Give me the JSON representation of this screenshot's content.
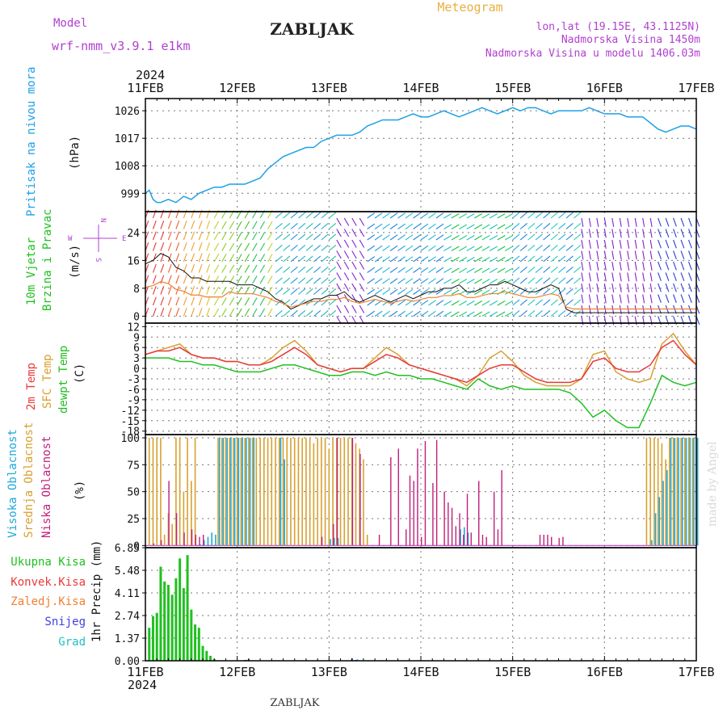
{
  "header": {
    "model_label": "Model",
    "model_name": "wrf-nmm_v3.9.1 e1km",
    "station": "ZABLJAK",
    "meteogram": "Meteogram",
    "lonlat": "lon,lat (19.15E, 43.1125N)",
    "altitude": "Nadmorska Visina 1450m",
    "model_altitude": "Nadmorska Visina u modelu 1406.03m",
    "year": "2024",
    "footer_station": "ZABLJAK",
    "credit": "made by Angel"
  },
  "colors": {
    "pressure": "#1ea0e6",
    "temp2m": "#e83a3a",
    "sfc_temp": "#d8a030",
    "dewpt": "#20c020",
    "high_cloud": "#20a8d8",
    "mid_cloud": "#d8a030",
    "low_cloud": "#c0207a",
    "total_precip": "#20c020",
    "conv_precip": "#e83a3a",
    "frozen_precip": "#f08030",
    "snow": "#4040e0",
    "hail": "#20c0c0",
    "label_purple": "#b040d0",
    "label_orange": "#e8b040"
  },
  "x_axis": {
    "day_labels": [
      "11FEB",
      "12FEB",
      "13FEB",
      "14FEB",
      "15FEB",
      "16FEB",
      "17FEB"
    ],
    "range_hours": [
      0,
      144
    ]
  },
  "panels": {
    "pressure": {
      "title": "Pritisak na nivou mora",
      "unit": "(hPa)",
      "ticks": [
        999,
        1008,
        1017,
        1026
      ],
      "ylim": [
        993,
        1030
      ]
    },
    "wind": {
      "title_line1": "10m Vjetar",
      "title_line2": "Brzina i Pravac",
      "unit": "(m/s)",
      "ticks": [
        0,
        8,
        16,
        24
      ],
      "ylim": [
        -2,
        30
      ],
      "compass": [
        "N",
        "W",
        "E",
        "S"
      ]
    },
    "temperature": {
      "label_2m": "2m Temp",
      "label_sfc": "SFC Temp",
      "label_dewpt": "dewpt Temp",
      "unit": "(C)",
      "ticks": [
        12,
        9,
        6,
        3,
        0,
        -3,
        -6,
        -9,
        -12,
        -15,
        -18
      ],
      "ylim": [
        -19,
        13
      ]
    },
    "clouds": {
      "label_high": "Visoka Oblacnost",
      "label_mid": "Srednja Oblacnost",
      "label_low": "Niska Oblacnost",
      "unit": "(%)",
      "ticks": [
        0,
        25,
        50,
        75,
        100
      ],
      "ylim": [
        0,
        100
      ]
    },
    "precip": {
      "legend": [
        "Ukupna Kisa",
        "Konvek.Kisa",
        "Zaledj.Kisa",
        "Snijeg",
        "Grad"
      ],
      "axis_label": "1hr Precip (mm)",
      "ticks": [
        "0.00",
        "1.37",
        "2.74",
        "4.11",
        "5.48",
        "6.85"
      ],
      "ylim": [
        0,
        6.85
      ]
    }
  },
  "chart_data": {
    "type": "line",
    "x_unit": "hours since 11FEB 00UTC",
    "pressure_hpa": {
      "x": [
        0,
        1,
        2,
        3,
        4,
        6,
        8,
        10,
        12,
        14,
        16,
        18,
        20,
        22,
        24,
        26,
        28,
        30,
        32,
        34,
        36,
        38,
        40,
        42,
        44,
        46,
        48,
        50,
        52,
        54,
        56,
        58,
        60,
        62,
        64,
        66,
        68,
        70,
        72,
        74,
        76,
        78,
        80,
        82,
        84,
        86,
        88,
        90,
        92,
        94,
        96,
        98,
        100,
        102,
        104,
        106,
        108,
        110,
        112,
        114,
        116,
        118,
        120,
        122,
        124,
        126,
        128,
        130,
        132,
        134,
        136,
        138,
        140,
        142,
        144
      ],
      "y": [
        999,
        1000,
        997,
        996,
        996,
        997,
        996,
        998,
        997,
        999,
        1000,
        1001,
        1001,
        1002,
        1002,
        1002,
        1003,
        1004,
        1007,
        1009,
        1011,
        1012,
        1013,
        1014,
        1014,
        1016,
        1017,
        1018,
        1018,
        1018,
        1019,
        1021,
        1022,
        1023,
        1023,
        1023,
        1024,
        1025,
        1024,
        1024,
        1025,
        1026,
        1025,
        1024,
        1025,
        1026,
        1027,
        1026,
        1025,
        1026,
        1027,
        1026,
        1027,
        1027,
        1026,
        1025,
        1026,
        1026,
        1026,
        1026,
        1027,
        1026,
        1025,
        1025,
        1025,
        1024,
        1024,
        1024,
        1022,
        1020,
        1019,
        1020,
        1021,
        1021,
        1020
      ]
    },
    "wind_speed_ms": {
      "x": [
        0,
        2,
        4,
        6,
        8,
        10,
        12,
        14,
        16,
        18,
        20,
        22,
        24,
        26,
        28,
        30,
        32,
        34,
        36,
        38,
        40,
        42,
        44,
        46,
        48,
        50,
        52,
        54,
        56,
        58,
        60,
        62,
        64,
        66,
        68,
        70,
        72,
        74,
        76,
        78,
        80,
        82,
        84,
        86,
        88,
        90,
        92,
        94,
        96,
        98,
        100,
        102,
        104,
        106,
        108,
        110,
        112,
        114,
        116,
        118,
        120,
        122,
        124,
        126,
        128,
        130,
        132,
        134,
        136,
        138,
        140,
        142,
        144
      ],
      "y": [
        15,
        16,
        18,
        17,
        14,
        13,
        11,
        11,
        10,
        10,
        10,
        10,
        9,
        9,
        9,
        8,
        7,
        5,
        4,
        2,
        3,
        4,
        5,
        5,
        6,
        6,
        7,
        5,
        4,
        5,
        6,
        5,
        4,
        5,
        6,
        5,
        6,
        7,
        7,
        8,
        8,
        9,
        7,
        7,
        8,
        9,
        9,
        10,
        9,
        8,
        7,
        7,
        8,
        9,
        8,
        2,
        1,
        1,
        1,
        1,
        1,
        1,
        1,
        1,
        1,
        1,
        1,
        1,
        1,
        1,
        1,
        1,
        1
      ]
    },
    "temperature_c": {
      "x": [
        0,
        3,
        6,
        9,
        12,
        15,
        18,
        21,
        24,
        27,
        30,
        33,
        36,
        39,
        42,
        45,
        48,
        51,
        54,
        57,
        60,
        63,
        66,
        69,
        72,
        75,
        78,
        81,
        84,
        87,
        90,
        93,
        96,
        99,
        102,
        105,
        108,
        111,
        114,
        117,
        120,
        123,
        126,
        129,
        132,
        135,
        138,
        141,
        144
      ],
      "t2m": [
        4,
        5,
        5,
        6,
        4,
        3,
        3,
        2,
        2,
        1,
        1,
        2,
        4,
        6,
        4,
        1,
        0,
        -1,
        0,
        0,
        2,
        4,
        3,
        1,
        0,
        -1,
        -2,
        -3,
        -4,
        -2,
        0,
        1,
        1,
        -1,
        -3,
        -4,
        -4,
        -4,
        -3,
        2,
        3,
        0,
        -1,
        -1,
        1,
        6,
        8,
        4,
        1
      ],
      "sfc": [
        4,
        5,
        6,
        7,
        4,
        3,
        3,
        2,
        2,
        1,
        1,
        3,
        6,
        8,
        5,
        1,
        0,
        -1,
        0,
        0,
        3,
        6,
        4,
        1,
        0,
        -1,
        -2,
        -3,
        -5,
        -2,
        3,
        5,
        2,
        -2,
        -4,
        -5,
        -5,
        -5,
        -3,
        4,
        5,
        -1,
        -3,
        -4,
        -3,
        7,
        10,
        5,
        1
      ],
      "dewpt": [
        3,
        3,
        3,
        2,
        2,
        1,
        1,
        0,
        -1,
        -1,
        -1,
        0,
        1,
        1,
        0,
        -1,
        -2,
        -2,
        -1,
        -1,
        -2,
        -1,
        -2,
        -2,
        -3,
        -3,
        -4,
        -5,
        -6,
        -3,
        -5,
        -6,
        -5,
        -6,
        -6,
        -6,
        -6,
        -7,
        -10,
        -14,
        -12,
        -15,
        -17,
        -17,
        -10,
        -2,
        -4,
        -5,
        -4
      ]
    },
    "clouds_pct": {
      "high": [
        [
          14,
          1
        ],
        [
          15,
          5
        ],
        [
          16,
          8
        ],
        [
          17,
          12
        ],
        [
          18,
          10
        ],
        [
          19,
          100
        ],
        [
          20,
          100
        ],
        [
          21,
          100
        ],
        [
          22,
          100
        ],
        [
          23,
          100
        ],
        [
          24,
          100
        ],
        [
          25,
          100
        ],
        [
          26,
          100
        ],
        [
          27,
          100
        ],
        [
          28,
          100
        ],
        [
          35,
          100
        ],
        [
          36,
          80
        ],
        [
          48,
          6
        ],
        [
          49,
          7
        ],
        [
          50,
          7
        ],
        [
          82,
          15
        ],
        [
          83,
          17
        ],
        [
          84,
          12
        ],
        [
          132,
          5
        ],
        [
          133,
          30
        ],
        [
          134,
          45
        ],
        [
          135,
          60
        ],
        [
          136,
          70
        ],
        [
          137,
          100
        ],
        [
          138,
          100
        ],
        [
          139,
          100
        ],
        [
          140,
          100
        ],
        [
          141,
          100
        ],
        [
          142,
          100
        ],
        [
          143,
          100
        ],
        [
          144,
          100
        ]
      ],
      "mid": [
        [
          1,
          100
        ],
        [
          2,
          100
        ],
        [
          3,
          100
        ],
        [
          4,
          100
        ],
        [
          5,
          10
        ],
        [
          6,
          30
        ],
        [
          7,
          20
        ],
        [
          8,
          100
        ],
        [
          9,
          100
        ],
        [
          10,
          50
        ],
        [
          11,
          100
        ],
        [
          12,
          60
        ],
        [
          13,
          100
        ],
        [
          19,
          100
        ],
        [
          20,
          100
        ],
        [
          21,
          100
        ],
        [
          22,
          100
        ],
        [
          23,
          100
        ],
        [
          24,
          100
        ],
        [
          25,
          100
        ],
        [
          26,
          100
        ],
        [
          27,
          100
        ],
        [
          28,
          100
        ],
        [
          29,
          100
        ],
        [
          30,
          100
        ],
        [
          31,
          100
        ],
        [
          32,
          100
        ],
        [
          33,
          100
        ],
        [
          34,
          100
        ],
        [
          35,
          100
        ],
        [
          36,
          100
        ],
        [
          37,
          100
        ],
        [
          38,
          100
        ],
        [
          39,
          100
        ],
        [
          40,
          100
        ],
        [
          41,
          100
        ],
        [
          42,
          100
        ],
        [
          43,
          100
        ],
        [
          44,
          95
        ],
        [
          45,
          100
        ],
        [
          46,
          100
        ],
        [
          47,
          100
        ],
        [
          48,
          90
        ],
        [
          49,
          100
        ],
        [
          50,
          100
        ],
        [
          51,
          100
        ],
        [
          52,
          100
        ],
        [
          53,
          100
        ],
        [
          54,
          100
        ],
        [
          55,
          95
        ],
        [
          56,
          90
        ],
        [
          57,
          80
        ],
        [
          58,
          10
        ],
        [
          131,
          100
        ],
        [
          132,
          100
        ],
        [
          133,
          100
        ],
        [
          134,
          100
        ],
        [
          135,
          95
        ],
        [
          136,
          80
        ],
        [
          137,
          100
        ],
        [
          138,
          100
        ],
        [
          139,
          100
        ],
        [
          140,
          100
        ],
        [
          141,
          100
        ],
        [
          142,
          100
        ],
        [
          143,
          100
        ],
        [
          144,
          100
        ]
      ],
      "low": [
        [
          2,
          2
        ],
        [
          4,
          5
        ],
        [
          6,
          60
        ],
        [
          8,
          30
        ],
        [
          10,
          12
        ],
        [
          12,
          15
        ],
        [
          13,
          10
        ],
        [
          14,
          8
        ],
        [
          15,
          10
        ],
        [
          46,
          8
        ],
        [
          49,
          20
        ],
        [
          50,
          100
        ],
        [
          54,
          100
        ],
        [
          56,
          85
        ],
        [
          61,
          10
        ],
        [
          64,
          82
        ],
        [
          66,
          90
        ],
        [
          68,
          15
        ],
        [
          69,
          65
        ],
        [
          70,
          60
        ],
        [
          71,
          90
        ],
        [
          72,
          8
        ],
        [
          73,
          97
        ],
        [
          75,
          58
        ],
        [
          76,
          98
        ],
        [
          78,
          50
        ],
        [
          79,
          40
        ],
        [
          80,
          35
        ],
        [
          81,
          18
        ],
        [
          82,
          30
        ],
        [
          83,
          10
        ],
        [
          84,
          48
        ],
        [
          85,
          12
        ],
        [
          87,
          60
        ],
        [
          88,
          10
        ],
        [
          89,
          8
        ],
        [
          91,
          50
        ],
        [
          92,
          15
        ],
        [
          93,
          70
        ],
        [
          103,
          10
        ],
        [
          104,
          10
        ],
        [
          105,
          10
        ],
        [
          106,
          8
        ],
        [
          108,
          7
        ],
        [
          109,
          8
        ]
      ]
    },
    "precip_mm": {
      "total": [
        [
          1,
          2.0
        ],
        [
          2,
          2.7
        ],
        [
          3,
          2.9
        ],
        [
          4,
          5.7
        ],
        [
          5,
          4.8
        ],
        [
          6,
          4.6
        ],
        [
          7,
          4.0
        ],
        [
          8,
          5.0
        ],
        [
          9,
          6.2
        ],
        [
          10,
          4.4
        ],
        [
          11,
          6.4
        ],
        [
          12,
          3.1
        ],
        [
          13,
          2.2
        ],
        [
          14,
          2.0
        ],
        [
          15,
          0.9
        ],
        [
          16,
          0.6
        ],
        [
          17,
          0.3
        ],
        [
          18,
          0.1
        ]
      ],
      "snow": [
        [
          26,
          0.05
        ],
        [
          27,
          0.1
        ],
        [
          54,
          0.15
        ],
        [
          55,
          0.05
        ]
      ],
      "hail": [
        [
          26,
          0.05
        ],
        [
          55,
          0.08
        ]
      ]
    }
  }
}
